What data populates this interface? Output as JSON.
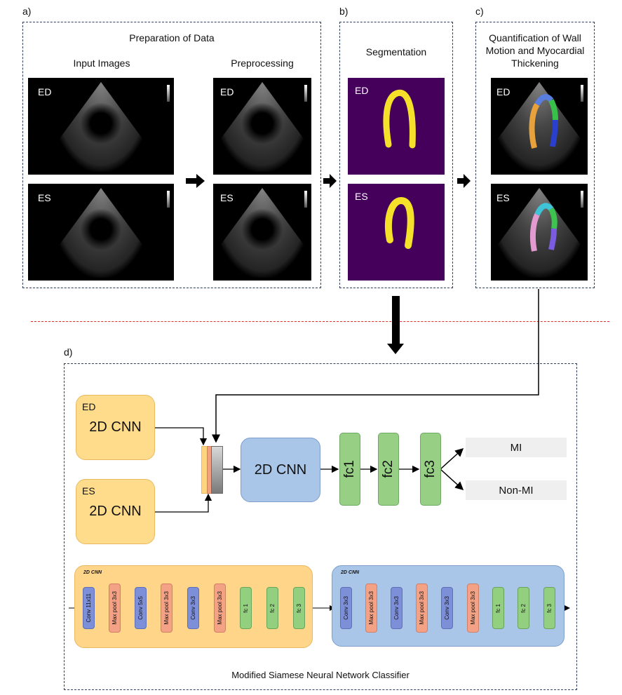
{
  "panels": {
    "a": {
      "label": "a)",
      "title": "Preparation of Data",
      "col1": "Input Images",
      "col2": "Preprocessing"
    },
    "b": {
      "label": "b)",
      "title": "Segmentation"
    },
    "c": {
      "label": "c)",
      "title_lines": [
        "Quantification of Wall",
        "Motion and Myocardial",
        "Thickening"
      ]
    },
    "d": {
      "label": "d)",
      "caption": "Modified Siamese Neural Network Classifier"
    }
  },
  "frames": {
    "ed": "ED",
    "es": "ES"
  },
  "network": {
    "ed_tag": "ED",
    "es_tag": "ES",
    "cnn_label": "2D CNN",
    "fc": [
      "fc1",
      "fc2",
      "fc3"
    ],
    "outputs": [
      "MI",
      "Non-MI"
    ]
  },
  "cnn_orange": {
    "title": "2D CNN",
    "layers": [
      "Conv 11x11",
      "Max pool 3x3",
      "Conv 5x5",
      "Max pool 3x3",
      "Conv 3x3",
      "Max pool 3x3",
      "fc 1",
      "fc 2",
      "fc 3"
    ]
  },
  "cnn_blue": {
    "title": "2D CNN",
    "layers": [
      "Conv 3x3",
      "Max pool 3x3",
      "Conv 3x3",
      "Max pool 3x3",
      "Conv 3x3",
      "Max pool 3x3",
      "fc 1",
      "fc 2",
      "fc 3"
    ]
  },
  "colors": {
    "frame": "#2f3e5c",
    "separator": "#d9302c",
    "segmentation_bg": "#44005a",
    "mask": "#f5e12a"
  }
}
